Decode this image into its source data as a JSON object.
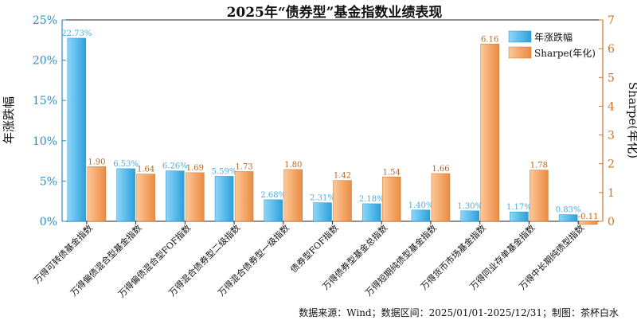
{
  "chart_data": {
    "type": "bar",
    "title": "2025年“债券型”基金指数业绩表现",
    "categories": [
      "万得可转债基金指数",
      "万得偏债混合型基金指数",
      "万得偏债混合型FOF指数",
      "万得混合债券型二级指数",
      "万得混合债券型一级指数",
      "债券型FOF指数",
      "万得债券型基金总指数",
      "万得短期纯债型基金指数",
      "万得货币市场基金指数",
      "万得同业存单基金指数",
      "万得中长期纯债型指数"
    ],
    "series": [
      {
        "name": "年涨跌幅",
        "axis": "left",
        "values": [
          22.73,
          6.53,
          6.26,
          5.59,
          2.68,
          2.31,
          2.18,
          1.4,
          1.3,
          1.17,
          0.83
        ],
        "labels": [
          "22.73%",
          "6.53%",
          "6.26%",
          "5.59%",
          "2.68%",
          "2.31%",
          "2.18%",
          "1.40%",
          "1.30%",
          "1.17%",
          "0.83%"
        ],
        "color": "#5bbcec"
      },
      {
        "name": "Sharpe(年化)",
        "axis": "right",
        "values": [
          1.9,
          1.64,
          1.69,
          1.73,
          1.8,
          1.42,
          1.54,
          1.66,
          6.16,
          1.78,
          -0.11
        ],
        "labels": [
          "1.90",
          "1.64",
          "1.69",
          "1.73",
          "1.80",
          "1.42",
          "1.54",
          "1.66",
          "6.16",
          "1.78",
          "-0.11"
        ],
        "color": "#f5a86a"
      }
    ],
    "ylabel": "年涨跌幅",
    "y2label": "Sharpe(年化)",
    "ylim": [
      0,
      25
    ],
    "y2lim": [
      0,
      7
    ],
    "yticks": [
      "0%",
      "5%",
      "10%",
      "15%",
      "20%",
      "25%"
    ],
    "y2ticks": [
      "0",
      "1",
      "2",
      "3",
      "4",
      "5",
      "6",
      "7"
    ],
    "legend_position": "top-right",
    "grid": false,
    "axis_colors": {
      "left": "#2a8fc4",
      "right": "#c8742a"
    }
  },
  "footer": {
    "source": "数据来源：Wind；数据区间：2025/01/01-2025/12/31；制图：茶杯白水"
  }
}
